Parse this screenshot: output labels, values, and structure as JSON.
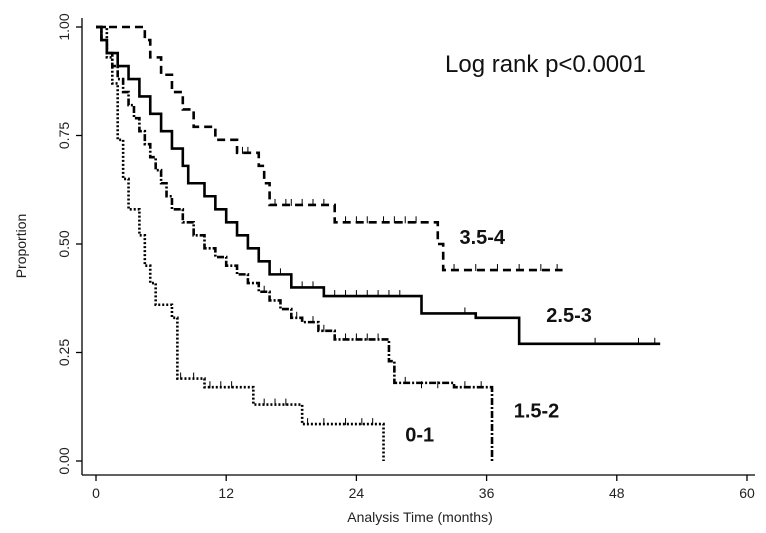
{
  "chart_data": {
    "type": "line",
    "step": true,
    "xlabel": "Analysis Time (months)",
    "ylabel": "Proportion",
    "xlim": [
      0,
      60
    ],
    "ylim": [
      0,
      1
    ],
    "xticks": [
      "0",
      "12",
      "24",
      "36",
      "48",
      "60"
    ],
    "yticks": [
      "0.00",
      "0.25",
      "0.50",
      "0.75",
      "1.00"
    ],
    "grid": false,
    "annotation": "Log rank p<0.0001",
    "series": [
      {
        "name": "0-1",
        "dash": "2,2",
        "points": [
          [
            0,
            1.0
          ],
          [
            1,
            0.93
          ],
          [
            1.5,
            0.87
          ],
          [
            2,
            0.74
          ],
          [
            2.5,
            0.65
          ],
          [
            3,
            0.58
          ],
          [
            4,
            0.52
          ],
          [
            4.5,
            0.45
          ],
          [
            5,
            0.41
          ],
          [
            5.5,
            0.36
          ],
          [
            7,
            0.33
          ],
          [
            7.5,
            0.19
          ],
          [
            10,
            0.17
          ],
          [
            14.5,
            0.13
          ],
          [
            19,
            0.085
          ],
          [
            26.5,
            0.0
          ]
        ],
        "censored": [
          [
            7.8,
            0.19
          ],
          [
            9,
            0.19
          ],
          [
            10.5,
            0.17
          ],
          [
            11.5,
            0.17
          ],
          [
            12.5,
            0.17
          ],
          [
            15.5,
            0.13
          ],
          [
            16.5,
            0.13
          ],
          [
            17.5,
            0.13
          ],
          [
            19.5,
            0.085
          ],
          [
            21,
            0.085
          ],
          [
            23,
            0.085
          ],
          [
            24.5,
            0.085
          ],
          [
            25.5,
            0.085
          ]
        ]
      },
      {
        "name": "1.5-2",
        "dash": "7,2,2,2",
        "points": [
          [
            0,
            1.0
          ],
          [
            0.5,
            0.97
          ],
          [
            1,
            0.94
          ],
          [
            1.5,
            0.91
          ],
          [
            2,
            0.88
          ],
          [
            2.5,
            0.85
          ],
          [
            3,
            0.82
          ],
          [
            3.5,
            0.79
          ],
          [
            4,
            0.76
          ],
          [
            4.5,
            0.73
          ],
          [
            5,
            0.7
          ],
          [
            5.5,
            0.67
          ],
          [
            6,
            0.64
          ],
          [
            6.5,
            0.61
          ],
          [
            7,
            0.58
          ],
          [
            8,
            0.55
          ],
          [
            9,
            0.52
          ],
          [
            10,
            0.49
          ],
          [
            11,
            0.47
          ],
          [
            12,
            0.45
          ],
          [
            13,
            0.43
          ],
          [
            14,
            0.41
          ],
          [
            15,
            0.39
          ],
          [
            16,
            0.37
          ],
          [
            17,
            0.35
          ],
          [
            18,
            0.33
          ],
          [
            19,
            0.32
          ],
          [
            20.5,
            0.3
          ],
          [
            22,
            0.28
          ],
          [
            27,
            0.23
          ],
          [
            27.5,
            0.18
          ],
          [
            33,
            0.17
          ],
          [
            36.5,
            0.0
          ]
        ],
        "censored": [
          [
            15.5,
            0.39
          ],
          [
            18.5,
            0.33
          ],
          [
            20,
            0.32
          ],
          [
            21,
            0.3
          ],
          [
            23,
            0.28
          ],
          [
            24,
            0.28
          ],
          [
            25,
            0.28
          ],
          [
            26,
            0.28
          ],
          [
            28.5,
            0.18
          ],
          [
            30,
            0.17
          ],
          [
            31.5,
            0.17
          ],
          [
            34,
            0.17
          ],
          [
            35.5,
            0.17
          ]
        ]
      },
      {
        "name": "2.5-3",
        "dash": "",
        "points": [
          [
            0,
            1.0
          ],
          [
            0.5,
            0.97
          ],
          [
            1,
            0.94
          ],
          [
            2,
            0.91
          ],
          [
            3,
            0.88
          ],
          [
            4,
            0.84
          ],
          [
            5,
            0.8
          ],
          [
            6,
            0.76
          ],
          [
            7,
            0.72
          ],
          [
            8,
            0.68
          ],
          [
            8.5,
            0.64
          ],
          [
            10,
            0.61
          ],
          [
            11,
            0.58
          ],
          [
            12,
            0.55
          ],
          [
            13,
            0.52
          ],
          [
            14,
            0.49
          ],
          [
            15,
            0.46
          ],
          [
            16,
            0.43
          ],
          [
            18,
            0.4
          ],
          [
            21,
            0.38
          ],
          [
            30,
            0.34
          ],
          [
            35,
            0.33
          ],
          [
            39,
            0.27
          ],
          [
            52,
            0.27
          ]
        ],
        "censored": [
          [
            17,
            0.43
          ],
          [
            19,
            0.4
          ],
          [
            20,
            0.4
          ],
          [
            22,
            0.38
          ],
          [
            23,
            0.38
          ],
          [
            24,
            0.38
          ],
          [
            25,
            0.38
          ],
          [
            26,
            0.38
          ],
          [
            27,
            0.38
          ],
          [
            28,
            0.38
          ],
          [
            34,
            0.34
          ],
          [
            46,
            0.27
          ],
          [
            50,
            0.27
          ],
          [
            51.5,
            0.27
          ]
        ]
      },
      {
        "name": "3.5-4",
        "dash": "8,5",
        "points": [
          [
            0,
            1.0
          ],
          [
            2.5,
            1.0
          ],
          [
            4.5,
            0.97
          ],
          [
            5,
            0.93
          ],
          [
            6,
            0.89
          ],
          [
            7,
            0.85
          ],
          [
            8,
            0.81
          ],
          [
            9,
            0.77
          ],
          [
            11,
            0.74
          ],
          [
            13,
            0.71
          ],
          [
            15,
            0.68
          ],
          [
            15.5,
            0.64
          ],
          [
            16,
            0.59
          ],
          [
            22,
            0.55
          ],
          [
            31.5,
            0.5
          ],
          [
            32,
            0.44
          ],
          [
            43,
            0.44
          ]
        ],
        "censored": [
          [
            13.5,
            0.71
          ],
          [
            14,
            0.71
          ],
          [
            16.5,
            0.59
          ],
          [
            17.5,
            0.59
          ],
          [
            18,
            0.59
          ],
          [
            19,
            0.59
          ],
          [
            20,
            0.59
          ],
          [
            21,
            0.59
          ],
          [
            23,
            0.55
          ],
          [
            24,
            0.55
          ],
          [
            25,
            0.55
          ],
          [
            26.5,
            0.55
          ],
          [
            27.5,
            0.55
          ],
          [
            28.5,
            0.55
          ],
          [
            29.5,
            0.55
          ],
          [
            33,
            0.44
          ],
          [
            35,
            0.44
          ],
          [
            37,
            0.44
          ],
          [
            39,
            0.44
          ],
          [
            41,
            0.44
          ],
          [
            42.5,
            0.44
          ]
        ]
      }
    ],
    "labels": [
      {
        "text": "3.5-4",
        "x": 33.5,
        "y": 0.5
      },
      {
        "text": "2.5-3",
        "x": 41.5,
        "y": 0.32
      },
      {
        "text": "1.5-2",
        "x": 38.5,
        "y": 0.1
      },
      {
        "text": "0-1",
        "x": 28.5,
        "y": 0.045
      }
    ]
  }
}
